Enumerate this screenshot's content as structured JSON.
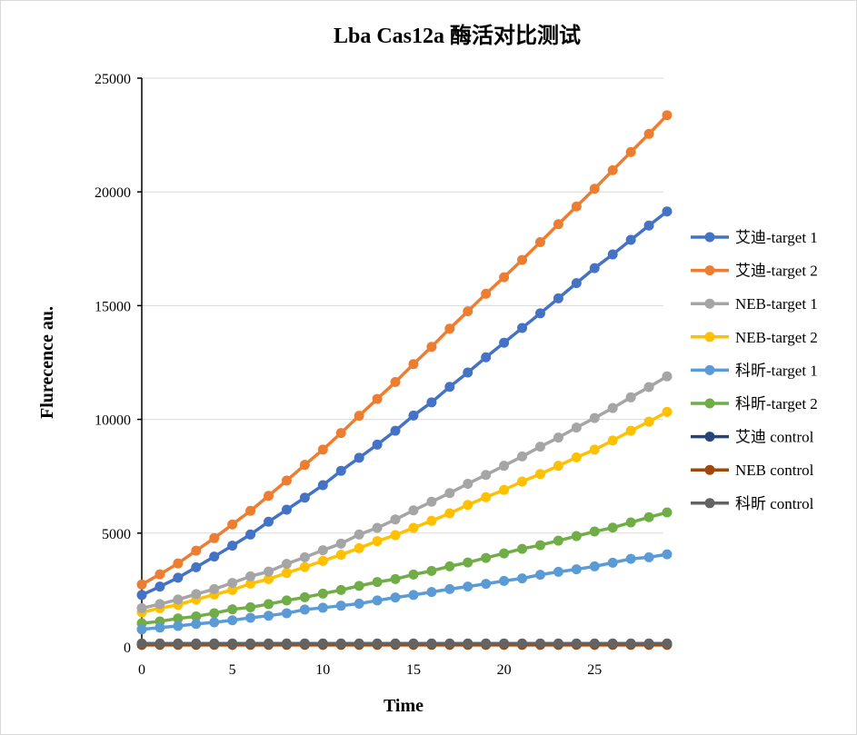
{
  "chart_data": {
    "type": "line",
    "title": "Lba Cas12a 酶活对比测试",
    "xlabel": "Time",
    "ylabel": "Flurecence au.",
    "xlim": [
      0,
      29
    ],
    "ylim": [
      0,
      25000
    ],
    "x_ticks": [
      "0",
      "5",
      "10",
      "15",
      "20",
      "25"
    ],
    "y_ticks": [
      "0",
      "5000",
      "10000",
      "15000",
      "20000",
      "25000"
    ],
    "grid": "horizontal",
    "legend_position": "right",
    "x": [
      0,
      1,
      2,
      3,
      4,
      5,
      6,
      7,
      8,
      9,
      10,
      11,
      12,
      13,
      14,
      15,
      16,
      17,
      18,
      19,
      20,
      21,
      22,
      23,
      24,
      25,
      26,
      27,
      28,
      29
    ],
    "series": [
      {
        "name": "艾迪-target 1",
        "color": "#4472C4",
        "values": [
          2280,
          2650,
          3040,
          3500,
          3970,
          4450,
          4940,
          5500,
          6030,
          6560,
          7110,
          7740,
          8310,
          8890,
          9500,
          10170,
          10750,
          11430,
          12060,
          12730,
          13370,
          14020,
          14660,
          15320,
          15990,
          16650,
          17250,
          17890,
          18520,
          19140
        ]
      },
      {
        "name": "艾迪-target 2",
        "color": "#ED7D31",
        "values": [
          2743,
          3190,
          3670,
          4230,
          4780,
          5380,
          5980,
          6640,
          7310,
          8000,
          8670,
          9400,
          10160,
          10900,
          11640,
          12430,
          13190,
          13990,
          14750,
          15520,
          16250,
          17010,
          17790,
          18580,
          19360,
          20140,
          20950,
          21750,
          22550,
          23370
        ]
      },
      {
        "name": "NEB-target 1",
        "color": "#A5A5A5",
        "values": [
          1700,
          1880,
          2080,
          2320,
          2540,
          2810,
          3100,
          3310,
          3650,
          3940,
          4250,
          4540,
          4940,
          5230,
          5600,
          6000,
          6380,
          6760,
          7170,
          7560,
          7960,
          8370,
          8800,
          9200,
          9640,
          10060,
          10500,
          10970,
          11420,
          11890
        ]
      },
      {
        "name": "NEB-target 2",
        "color": "#FFC000",
        "values": [
          1520,
          1700,
          1850,
          2080,
          2300,
          2500,
          2780,
          2980,
          3250,
          3510,
          3780,
          4050,
          4340,
          4650,
          4910,
          5230,
          5540,
          5870,
          6240,
          6580,
          6900,
          7270,
          7600,
          7960,
          8330,
          8670,
          9070,
          9500,
          9900,
          10330
        ]
      },
      {
        "name": "科昕-target 1",
        "color": "#5B9BD5",
        "values": [
          770,
          850,
          920,
          1010,
          1080,
          1170,
          1280,
          1370,
          1480,
          1640,
          1720,
          1810,
          1900,
          2040,
          2170,
          2280,
          2410,
          2540,
          2650,
          2770,
          2900,
          3010,
          3170,
          3300,
          3410,
          3540,
          3700,
          3870,
          3940,
          4070
        ]
      },
      {
        "name": "科昕-target 2",
        "color": "#70AD47",
        "values": [
          1040,
          1120,
          1250,
          1340,
          1480,
          1650,
          1740,
          1880,
          2040,
          2180,
          2340,
          2500,
          2680,
          2850,
          2980,
          3180,
          3340,
          3540,
          3710,
          3910,
          4110,
          4310,
          4470,
          4670,
          4870,
          5070,
          5240,
          5470,
          5700,
          5910
        ]
      },
      {
        "name": "艾迪 control",
        "color": "#264478",
        "values": [
          140,
          140,
          140,
          140,
          140,
          140,
          140,
          140,
          140,
          140,
          140,
          140,
          140,
          140,
          140,
          140,
          140,
          140,
          140,
          140,
          140,
          140,
          140,
          140,
          140,
          140,
          140,
          140,
          140,
          140
        ]
      },
      {
        "name": "NEB control",
        "color": "#9E480E",
        "values": [
          90,
          90,
          90,
          90,
          90,
          90,
          90,
          90,
          90,
          90,
          90,
          90,
          90,
          90,
          90,
          90,
          90,
          90,
          90,
          90,
          90,
          90,
          90,
          90,
          90,
          90,
          90,
          90,
          90,
          90
        ]
      },
      {
        "name": "科昕 control",
        "color": "#636363",
        "values": [
          150,
          150,
          150,
          150,
          150,
          150,
          150,
          150,
          150,
          150,
          150,
          150,
          150,
          150,
          150,
          150,
          150,
          150,
          150,
          150,
          150,
          150,
          150,
          150,
          150,
          150,
          150,
          150,
          150,
          150
        ]
      }
    ]
  }
}
